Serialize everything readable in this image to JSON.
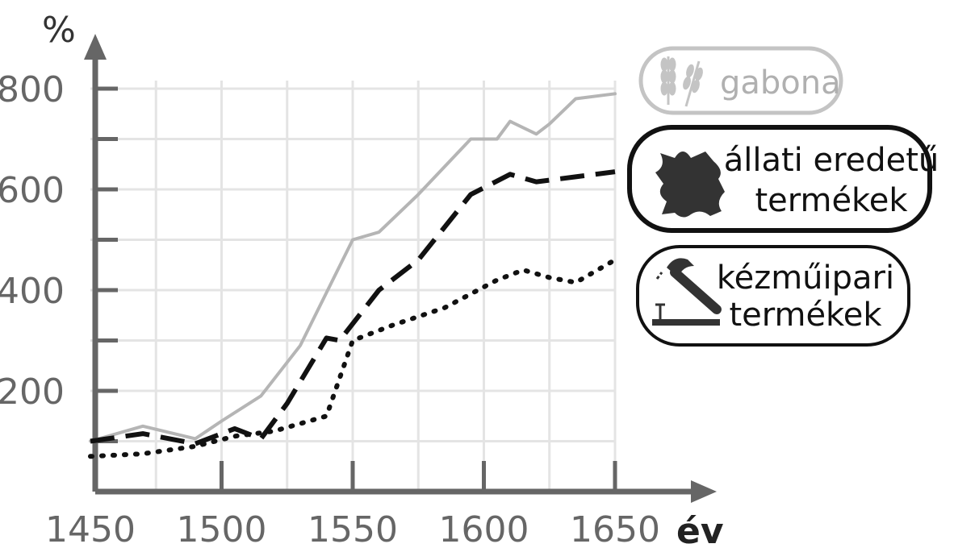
{
  "chart_data": {
    "type": "line",
    "ylabel": "%",
    "xlabel": "év",
    "xlim": [
      1450,
      1650
    ],
    "ylim": [
      0,
      800
    ],
    "xticks": [
      1450,
      1500,
      1550,
      1600,
      1650
    ],
    "yticks": [
      200,
      400,
      600,
      800
    ],
    "grid": true,
    "legend_position": "right",
    "series": [
      {
        "name": "gabona",
        "legend_lines": [
          "gabona"
        ],
        "color": "#b5b5b5",
        "icon": "wheat-icon",
        "x": [
          1450,
          1470,
          1490,
          1500,
          1515,
          1530,
          1550,
          1560,
          1575,
          1595,
          1605,
          1610,
          1620,
          1625,
          1635,
          1650
        ],
        "y": [
          100,
          130,
          105,
          140,
          190,
          290,
          500,
          515,
          590,
          700,
          700,
          735,
          710,
          730,
          780,
          790
        ]
      },
      {
        "name": "állati eredetű termékek",
        "legend_lines": [
          "állati eredetű",
          "termékek"
        ],
        "color": "#111111",
        "icon": "leather-icon",
        "x": [
          1450,
          1470,
          1490,
          1505,
          1515,
          1525,
          1540,
          1545,
          1560,
          1575,
          1595,
          1610,
          1620,
          1635,
          1650
        ],
        "y": [
          100,
          115,
          95,
          125,
          105,
          175,
          305,
          300,
          400,
          460,
          590,
          630,
          615,
          625,
          635
        ]
      },
      {
        "name": "kézműipari termékek",
        "legend_lines": [
          "kézműipari",
          "termékek"
        ],
        "color": "#111111",
        "icon": "hammer-icon",
        "x": [
          1450,
          1470,
          1490,
          1505,
          1520,
          1540,
          1550,
          1565,
          1585,
          1605,
          1615,
          1625,
          1635,
          1650
        ],
        "y": [
          70,
          75,
          90,
          110,
          120,
          150,
          300,
          330,
          365,
          420,
          440,
          425,
          415,
          460
        ]
      }
    ]
  }
}
